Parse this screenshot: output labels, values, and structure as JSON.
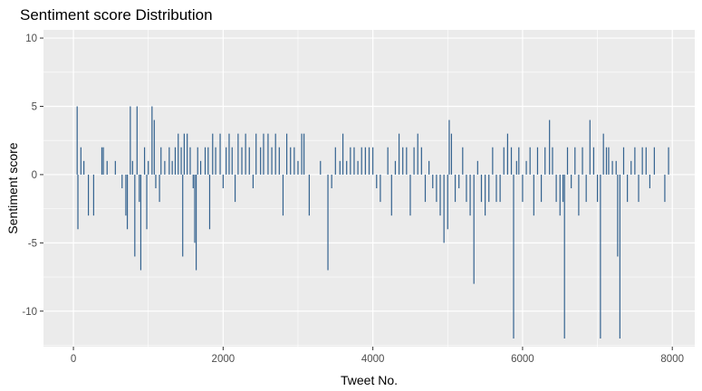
{
  "chart_data": {
    "type": "bar",
    "title": "Sentiment score Distribution",
    "xlabel": "Tweet No.",
    "ylabel": "Sentiment score",
    "xlim": [
      -400,
      8300
    ],
    "ylim": [
      -12.6,
      10.6
    ],
    "x_ticks": [
      0,
      2000,
      4000,
      6000,
      8000
    ],
    "y_ticks": [
      -10,
      -5,
      0,
      5,
      10
    ],
    "grid": true,
    "legend": "none",
    "bar_color": "#33628f",
    "panel_color": "#ebebeb",
    "grid_color": "#ffffff",
    "points": [
      [
        50,
        5
      ],
      [
        60,
        -4
      ],
      [
        100,
        2
      ],
      [
        140,
        1
      ],
      [
        200,
        -3
      ],
      [
        270,
        -3
      ],
      [
        380,
        2
      ],
      [
        400,
        2
      ],
      [
        450,
        1
      ],
      [
        560,
        1
      ],
      [
        650,
        -1
      ],
      [
        700,
        -3
      ],
      [
        720,
        -4
      ],
      [
        760,
        5
      ],
      [
        790,
        1
      ],
      [
        820,
        -6
      ],
      [
        850,
        5
      ],
      [
        880,
        -2
      ],
      [
        900,
        -7
      ],
      [
        950,
        2
      ],
      [
        980,
        -4
      ],
      [
        1000,
        1
      ],
      [
        1050,
        5
      ],
      [
        1080,
        4
      ],
      [
        1100,
        -1
      ],
      [
        1150,
        -2
      ],
      [
        1170,
        2
      ],
      [
        1220,
        1
      ],
      [
        1280,
        2
      ],
      [
        1320,
        1
      ],
      [
        1360,
        2
      ],
      [
        1400,
        3
      ],
      [
        1440,
        2
      ],
      [
        1460,
        -6
      ],
      [
        1480,
        3
      ],
      [
        1520,
        3
      ],
      [
        1560,
        2
      ],
      [
        1600,
        -1
      ],
      [
        1620,
        -5
      ],
      [
        1640,
        -7
      ],
      [
        1660,
        2
      ],
      [
        1700,
        1
      ],
      [
        1760,
        2
      ],
      [
        1800,
        2
      ],
      [
        1820,
        -4
      ],
      [
        1860,
        3
      ],
      [
        1900,
        2
      ],
      [
        1960,
        3
      ],
      [
        2000,
        -1
      ],
      [
        2040,
        2
      ],
      [
        2080,
        3
      ],
      [
        2120,
        2
      ],
      [
        2160,
        -2
      ],
      [
        2200,
        3
      ],
      [
        2250,
        2
      ],
      [
        2300,
        3
      ],
      [
        2350,
        2
      ],
      [
        2400,
        -1
      ],
      [
        2440,
        3
      ],
      [
        2500,
        2
      ],
      [
        2540,
        3
      ],
      [
        2600,
        3
      ],
      [
        2650,
        2
      ],
      [
        2700,
        3
      ],
      [
        2750,
        2
      ],
      [
        2800,
        -3
      ],
      [
        2850,
        3
      ],
      [
        2900,
        2
      ],
      [
        2950,
        2
      ],
      [
        3000,
        1
      ],
      [
        3050,
        3
      ],
      [
        3080,
        3
      ],
      [
        3150,
        -3
      ],
      [
        3300,
        1
      ],
      [
        3400,
        -7
      ],
      [
        3450,
        -1
      ],
      [
        3500,
        2
      ],
      [
        3560,
        1
      ],
      [
        3600,
        3
      ],
      [
        3650,
        1
      ],
      [
        3700,
        2
      ],
      [
        3750,
        2
      ],
      [
        3800,
        1
      ],
      [
        3850,
        2
      ],
      [
        3900,
        2
      ],
      [
        3950,
        2
      ],
      [
        4000,
        2
      ],
      [
        4050,
        -1
      ],
      [
        4100,
        -2
      ],
      [
        4200,
        2
      ],
      [
        4250,
        -3
      ],
      [
        4300,
        1
      ],
      [
        4350,
        3
      ],
      [
        4400,
        2
      ],
      [
        4450,
        2
      ],
      [
        4500,
        -3
      ],
      [
        4550,
        2
      ],
      [
        4600,
        3
      ],
      [
        4650,
        2
      ],
      [
        4700,
        -2
      ],
      [
        4750,
        1
      ],
      [
        4800,
        -1
      ],
      [
        4850,
        -2
      ],
      [
        4900,
        -3
      ],
      [
        4950,
        -5
      ],
      [
        5000,
        -4
      ],
      [
        5020,
        4
      ],
      [
        5050,
        3
      ],
      [
        5100,
        -2
      ],
      [
        5150,
        -1
      ],
      [
        5200,
        2
      ],
      [
        5250,
        -2
      ],
      [
        5300,
        -3
      ],
      [
        5350,
        -8
      ],
      [
        5400,
        1
      ],
      [
        5450,
        -2
      ],
      [
        5500,
        -3
      ],
      [
        5550,
        -2
      ],
      [
        5600,
        2
      ],
      [
        5650,
        -2
      ],
      [
        5700,
        -2
      ],
      [
        5750,
        2
      ],
      [
        5800,
        3
      ],
      [
        5850,
        2
      ],
      [
        5880,
        -12
      ],
      [
        5920,
        1
      ],
      [
        5950,
        2
      ],
      [
        6000,
        -2
      ],
      [
        6050,
        1
      ],
      [
        6100,
        2
      ],
      [
        6150,
        -3
      ],
      [
        6200,
        2
      ],
      [
        6250,
        -2
      ],
      [
        6300,
        2
      ],
      [
        6360,
        4
      ],
      [
        6400,
        2
      ],
      [
        6450,
        -2
      ],
      [
        6500,
        -3
      ],
      [
        6540,
        -2
      ],
      [
        6560,
        -12
      ],
      [
        6600,
        2
      ],
      [
        6650,
        -1
      ],
      [
        6700,
        2
      ],
      [
        6750,
        -3
      ],
      [
        6800,
        2
      ],
      [
        6850,
        -2
      ],
      [
        6900,
        4
      ],
      [
        6950,
        2
      ],
      [
        7000,
        -2
      ],
      [
        7040,
        -12
      ],
      [
        7080,
        3
      ],
      [
        7120,
        2
      ],
      [
        7150,
        2
      ],
      [
        7200,
        1
      ],
      [
        7250,
        1
      ],
      [
        7270,
        -6
      ],
      [
        7300,
        -12
      ],
      [
        7350,
        2
      ],
      [
        7400,
        -2
      ],
      [
        7450,
        1
      ],
      [
        7500,
        2
      ],
      [
        7550,
        -2
      ],
      [
        7600,
        2
      ],
      [
        7650,
        2
      ],
      [
        7700,
        -1
      ],
      [
        7760,
        2
      ],
      [
        7900,
        -2
      ],
      [
        7950,
        2
      ]
    ]
  }
}
